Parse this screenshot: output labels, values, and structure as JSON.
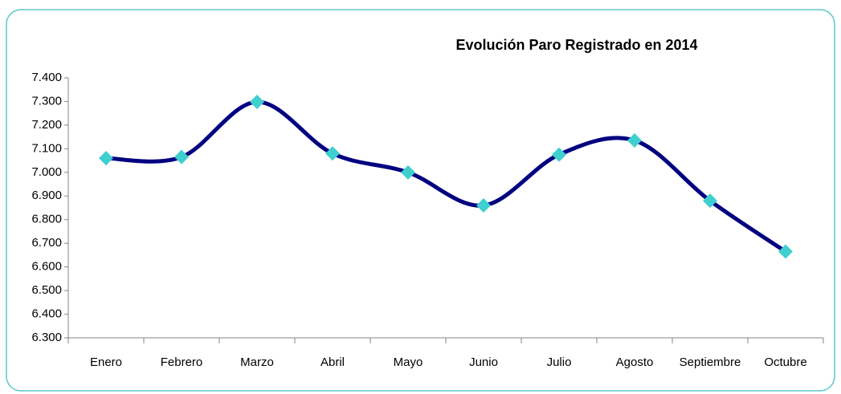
{
  "chart_data": {
    "type": "line",
    "title": "Evolución Paro Registrado en 2014",
    "categories": [
      "Enero",
      "Febrero",
      "Marzo",
      "Abril",
      "Mayo",
      "Junio",
      "Julio",
      "Agosto",
      "Septiembre",
      "Octubre"
    ],
    "series": [
      {
        "name": "Paro Registrado",
        "color": "#000080",
        "marker_color": "#3fcfcf",
        "values": [
          7060,
          7065,
          7298,
          7080,
          7000,
          6860,
          7075,
          7135,
          6880,
          6665
        ]
      }
    ],
    "ylim": [
      6300,
      7400
    ],
    "yticks": [
      {
        "value": 6300,
        "label": "6.300"
      },
      {
        "value": 6400,
        "label": "6.400"
      },
      {
        "value": 6500,
        "label": "6.500"
      },
      {
        "value": 6600,
        "label": "6.600"
      },
      {
        "value": 6700,
        "label": "6.700"
      },
      {
        "value": 6800,
        "label": "6.800"
      },
      {
        "value": 6900,
        "label": "6.900"
      },
      {
        "value": 7000,
        "label": "7.000"
      },
      {
        "value": 7100,
        "label": "7.100"
      },
      {
        "value": 7200,
        "label": "7.200"
      },
      {
        "value": 7300,
        "label": "7.300"
      },
      {
        "value": 7400,
        "label": "7.400"
      }
    ],
    "grid": false,
    "smooth": true
  }
}
